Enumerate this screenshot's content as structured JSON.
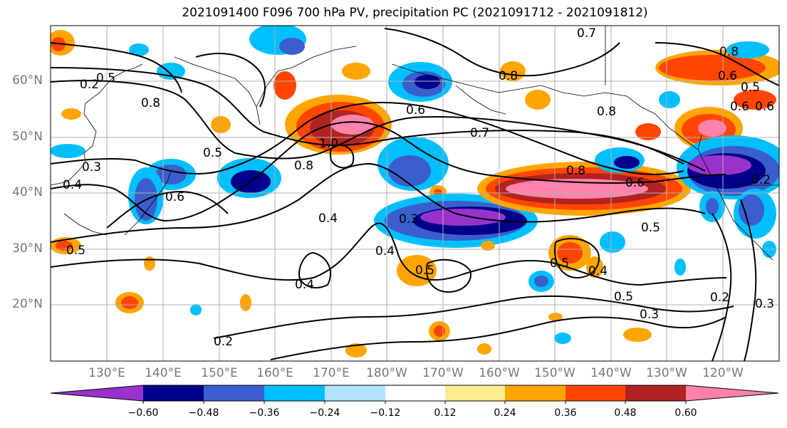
{
  "title": "2021091400 F096 700 hPa PV, precipitation PC (2021091712 - 2021091812)",
  "lat_labels": [
    "60°N",
    "50°N",
    "40°N",
    "30°N",
    "20°N"
  ],
  "lon_labels": [
    "130°E",
    "140°E",
    "150°E",
    "160°E",
    "170°E",
    "180°W",
    "170°W",
    "160°W",
    "150°W",
    "140°W",
    "130°W",
    "120°W"
  ],
  "colorbar": {
    "colors": [
      "#9932cc",
      "#00008b",
      "#3a5fcd",
      "#00bfff",
      "#b0e2ff",
      "#ffffff",
      "#ffec8b",
      "#ffa500",
      "#ff4500",
      "#b22222",
      "#ff82ab"
    ],
    "ticks": [
      "−0.60",
      "−0.48",
      "−0.36",
      "−0.24",
      "−0.12",
      "0.12",
      "0.24",
      "0.36",
      "0.48",
      "0.60"
    ]
  },
  "contour_labels": [
    "0.7",
    "0.8",
    "0.5",
    "0.3",
    "0.4",
    "0.8",
    "0.5",
    "0.4",
    "1.0",
    "0.8",
    "0.6",
    "0.7",
    "0.8",
    "0.6",
    "0.5",
    "0.8",
    "0.4",
    "0.3",
    "0.5",
    "0.4",
    "0.5",
    "0.3",
    "0.2",
    "0.2",
    "0.4",
    "0.5",
    "0.8",
    "0.6",
    "0.5",
    "0.6",
    "0.6",
    "0.2",
    "0.3",
    "0.2",
    "0.6",
    "0.5"
  ]
}
